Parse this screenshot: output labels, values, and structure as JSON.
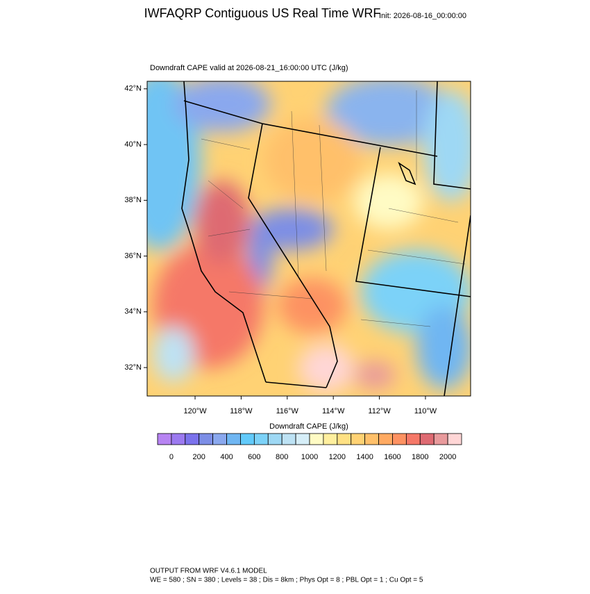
{
  "chart_data": {
    "type": "map",
    "title": "IWFAQRP Contiguous US Real Time WRF",
    "init": "Init: 2026-08-16_00:00:00",
    "subtitle": "Downdraft CAPE valid at 2026-08-21_16:00:00 UTC   (J/kg)",
    "xlim": [
      -122.08,
      -108.04
    ],
    "ylim": [
      30.98,
      42.27
    ],
    "xticks": [
      {
        "value": -120,
        "label": "120°W"
      },
      {
        "value": -118,
        "label": "118°W"
      },
      {
        "value": -116,
        "label": "116°W"
      },
      {
        "value": -114,
        "label": "114°W"
      },
      {
        "value": -112,
        "label": "112°W"
      },
      {
        "value": -110,
        "label": "110°W"
      }
    ],
    "yticks": [
      {
        "value": 42,
        "label": "42°N"
      },
      {
        "value": 40,
        "label": "40°N"
      },
      {
        "value": 38,
        "label": "38°N"
      },
      {
        "value": 36,
        "label": "36°N"
      },
      {
        "value": 34,
        "label": "34°N"
      },
      {
        "value": 32,
        "label": "32°N"
      }
    ],
    "colorbar": {
      "title": "Downdraft CAPE  (J/kg)",
      "levels": [
        0,
        100,
        200,
        300,
        400,
        500,
        600,
        700,
        800,
        900,
        1000,
        1100,
        1200,
        1300,
        1400,
        1500,
        1600,
        1700,
        1800,
        1900,
        2000
      ],
      "colors": [
        "#b784f2",
        "#9c7af0",
        "#7b72ec",
        "#7c8ee6",
        "#8aa8ee",
        "#6fb6f2",
        "#62cafa",
        "#7cd2f8",
        "#9ed8f4",
        "#bde2f4",
        "#d6eef8",
        "#fffbc4",
        "#ffef9e",
        "#ffe184",
        "#ffd274",
        "#ffc06a",
        "#ffaa62",
        "#fd9262",
        "#f57868",
        "#de6a72",
        "#e89a9c",
        "#ffd6d6"
      ],
      "ticks": [
        0,
        200,
        400,
        600,
        800,
        1000,
        1200,
        1400,
        1600,
        1800,
        2000
      ]
    },
    "footer": [
      "OUTPUT FROM WRF V4.6.1 MODEL",
      "WE = 580 ; SN = 380 ; Levels = 38 ; Dis = 8km ; Phys Opt = 8 ; PBL Opt = 1 ; Cu Opt = 5"
    ]
  }
}
